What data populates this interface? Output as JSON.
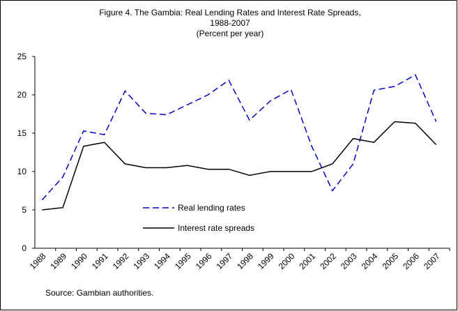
{
  "chart_data": {
    "type": "line",
    "title": [
      "Figure 4. The Gambia: Real Lending Rates and Interest Rate Spreads,",
      "1988-2007"
    ],
    "subtitle": "(Percent per year)",
    "categories": [
      "1988",
      "1989",
      "1990",
      "1991",
      "1992",
      "1993",
      "1994",
      "1995",
      "1996",
      "1997",
      "1998",
      "1999",
      "2000",
      "2001",
      "2002",
      "2003",
      "2004",
      "2005",
      "2006",
      "2007"
    ],
    "series": [
      {
        "name": "Real lending rates",
        "color": "#0000cc",
        "dashed": true,
        "values": [
          6.3,
          9.3,
          15.3,
          14.8,
          20.5,
          17.6,
          17.4,
          18.7,
          20.0,
          21.9,
          16.7,
          19.2,
          20.7,
          13.3,
          7.5,
          11.0,
          20.6,
          21.1,
          22.6,
          16.5
        ]
      },
      {
        "name": "Interest rate spreads",
        "color": "#000000",
        "dashed": false,
        "values": [
          5.0,
          5.3,
          13.3,
          13.8,
          11.0,
          10.5,
          10.5,
          10.8,
          10.3,
          10.3,
          9.5,
          10.0,
          10.0,
          10.0,
          11.0,
          14.3,
          13.8,
          16.5,
          16.3,
          13.5
        ]
      }
    ],
    "ylim": [
      0,
      25
    ],
    "yticks": [
      0,
      5,
      10,
      15,
      20,
      25
    ],
    "grid": false,
    "source": "Source: Gambian authorities."
  }
}
